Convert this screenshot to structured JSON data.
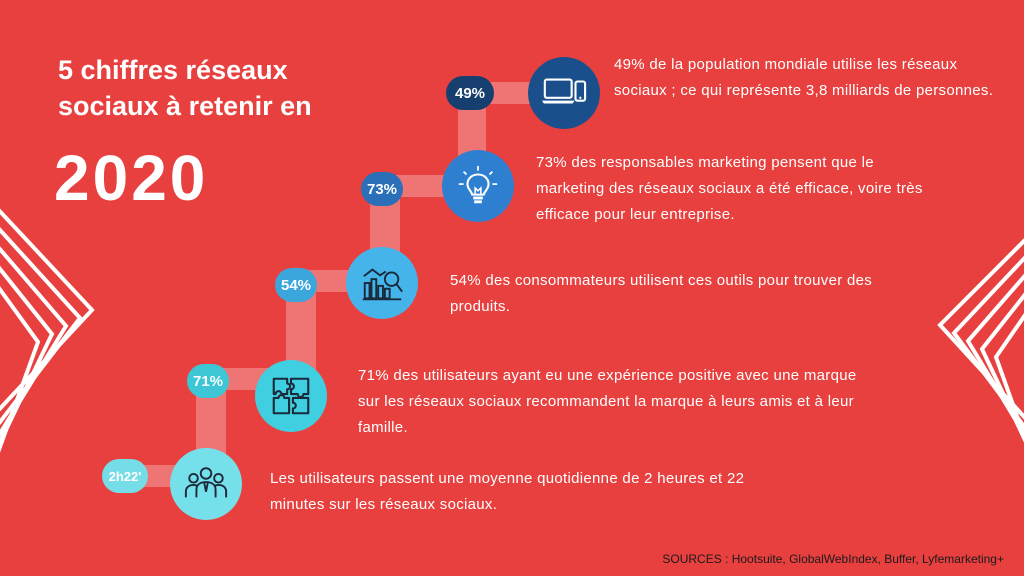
{
  "title": "5 chiffres réseaux sociaux à retenir en",
  "year": "2020",
  "stats": [
    {
      "badge": "49%",
      "icon": "devices-icon",
      "text": "49% de la population mondiale utilise les réseaux sociaux ; ce qui représente 3,8 milliards de personnes.",
      "circle_color": "#1b4f8c",
      "badge_color": "#163e6f"
    },
    {
      "badge": "73%",
      "icon": "lightbulb-icon",
      "text": "73% des responsables marketing pensent que le marketing des réseaux sociaux a été efficace, voire très efficace pour leur entreprise.",
      "circle_color": "#2f7fd1",
      "badge_color": "#2a6fb8"
    },
    {
      "badge": "54%",
      "icon": "chart-magnifier-icon",
      "text": "54% des consommateurs utilisent ces outils pour trouver des produits.",
      "circle_color": "#45b4ea",
      "badge_color": "#3ba6dc"
    },
    {
      "badge": "71%",
      "icon": "puzzle-icon",
      "text": "71% des utilisateurs ayant eu une expérience positive avec une marque sur les réseaux sociaux recommandent la marque à leurs amis et à leur famille.",
      "circle_color": "#3fcfe0",
      "badge_color": "#3cc6d6"
    },
    {
      "badge": "2h22'",
      "icon": "users-group-icon",
      "text": "Les utilisateurs passent une moyenne quotidienne de 2 heures et 22 minutes sur les réseaux sociaux.",
      "circle_color": "#76e0ea",
      "badge_color": "#74dde7"
    }
  ],
  "sources": "SOURCES : Hootsuite, GlobalWebIndex, Buffer, Lyfemarketing+"
}
